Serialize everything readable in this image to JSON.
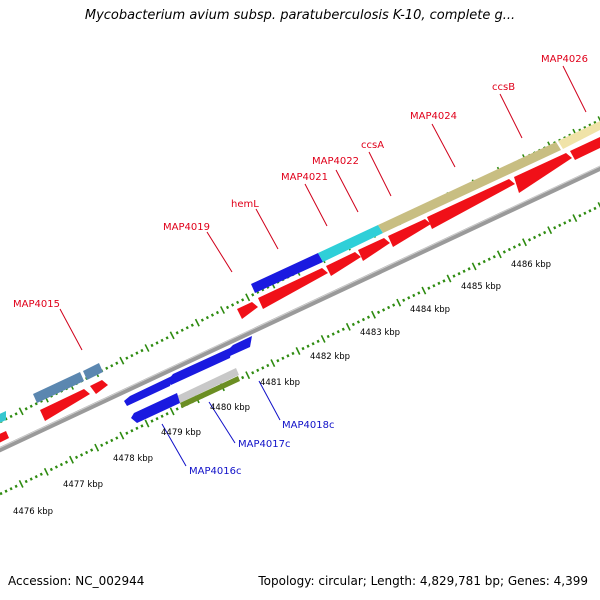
{
  "title": "Mycobacterium avium subsp. paratuberculosis K-10, complete g...",
  "accession": "Accession: NC_002944",
  "summary": "Topology: circular; Length: 4,829,781 bp; Genes: 4,399",
  "colors": {
    "forward_label": "#e0001a",
    "reverse_label": "#1010c8",
    "ticks": "#2e8b10",
    "backbone": "#888888"
  },
  "forward_genes": [
    {
      "name": "MAP4015"
    },
    {
      "name": "MAP4019"
    },
    {
      "name": "hemL"
    },
    {
      "name": "MAP4021"
    },
    {
      "name": "MAP4022"
    },
    {
      "name": "ccsA"
    },
    {
      "name": "MAP4024"
    },
    {
      "name": "ccsB"
    },
    {
      "name": "MAP4026"
    }
  ],
  "reverse_genes": [
    {
      "name": "MAP4016c"
    },
    {
      "name": "MAP4017c"
    },
    {
      "name": "MAP4018c"
    }
  ],
  "scale_labels": [
    "4476 kbp",
    "4477 kbp",
    "4478 kbp",
    "4479 kbp",
    "4480 kbp",
    "4481 kbp",
    "4482 kbp",
    "4483 kbp",
    "4484 kbp",
    "4485 kbp",
    "4486 kbp"
  ]
}
